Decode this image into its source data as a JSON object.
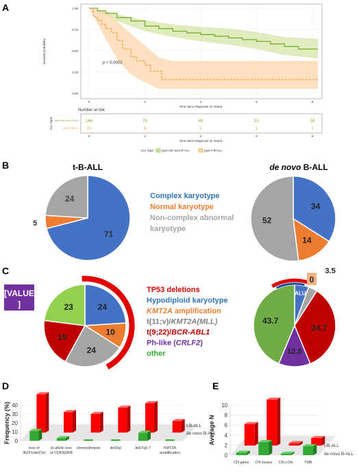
{
  "panels": {
    "A": "A",
    "B": "B",
    "C": "C",
    "D": "D",
    "E": "E"
  },
  "chart_data": [
    {
      "panel": "A",
      "type": "line",
      "xlabel": "Time since Diagnosis (in Years)",
      "ylabel": "Survival probability",
      "xticks": [
        "0",
        "2",
        "4",
        "6",
        "8"
      ],
      "yticks": [
        "0.00",
        "0.25",
        "0.50",
        "0.75",
        "1.00"
      ],
      "xlim": [
        0,
        8
      ],
      "ylim": [
        0,
        1
      ],
      "pvalue": "p < 0.0001",
      "series": [
        {
          "name": "type=de novo B-ALL",
          "color": "#7aab2a",
          "band": "#d6e6a8",
          "points": [
            [
              0,
              1
            ],
            [
              0.3,
              0.97
            ],
            [
              0.6,
              0.94
            ],
            [
              1,
              0.89
            ],
            [
              1.5,
              0.85
            ],
            [
              2,
              0.79
            ],
            [
              2.5,
              0.76
            ],
            [
              3,
              0.73
            ],
            [
              3.5,
              0.71
            ],
            [
              4,
              0.69
            ],
            [
              4.5,
              0.67
            ],
            [
              5,
              0.65
            ],
            [
              5.5,
              0.63
            ],
            [
              6,
              0.61
            ],
            [
              6.5,
              0.58
            ],
            [
              7,
              0.55
            ],
            [
              7.5,
              0.52
            ],
            [
              8.2,
              0.52
            ]
          ],
          "upper": [
            [
              0,
              1
            ],
            [
              1,
              0.93
            ],
            [
              2,
              0.86
            ],
            [
              3,
              0.81
            ],
            [
              4,
              0.78
            ],
            [
              5,
              0.76
            ],
            [
              6,
              0.72
            ],
            [
              7,
              0.66
            ],
            [
              8.2,
              0.64
            ]
          ],
          "lower": [
            [
              0,
              1
            ],
            [
              1,
              0.85
            ],
            [
              2,
              0.73
            ],
            [
              3,
              0.66
            ],
            [
              4,
              0.61
            ],
            [
              5,
              0.57
            ],
            [
              6,
              0.52
            ],
            [
              7,
              0.45
            ],
            [
              8.2,
              0.41
            ]
          ]
        },
        {
          "name": "type=t-B-ALL",
          "color": "#f0a040",
          "band": "#fbd6ab",
          "points": [
            [
              0,
              1
            ],
            [
              0.15,
              0.9
            ],
            [
              0.3,
              0.86
            ],
            [
              0.45,
              0.81
            ],
            [
              0.6,
              0.76
            ],
            [
              0.8,
              0.71
            ],
            [
              1,
              0.62
            ],
            [
              1.2,
              0.52
            ],
            [
              1.5,
              0.43
            ],
            [
              1.7,
              0.38
            ],
            [
              2,
              0.33
            ],
            [
              2.2,
              0.26
            ],
            [
              2.6,
              0.16
            ],
            [
              3.5,
              0.16
            ],
            [
              5,
              0.16
            ],
            [
              8.2,
              0.16
            ]
          ],
          "upper": [
            [
              0,
              1
            ],
            [
              0.5,
              0.97
            ],
            [
              1,
              0.85
            ],
            [
              1.5,
              0.7
            ],
            [
              2,
              0.56
            ],
            [
              2.5,
              0.42
            ],
            [
              3,
              0.38
            ],
            [
              8.2,
              0.38
            ]
          ],
          "lower": [
            [
              0,
              1
            ],
            [
              0.5,
              0.7
            ],
            [
              1,
              0.4
            ],
            [
              1.5,
              0.22
            ],
            [
              2,
              0.13
            ],
            [
              2.5,
              0.05
            ],
            [
              3,
              0.05
            ],
            [
              8.2,
              0.05
            ]
          ]
        }
      ],
      "risk_table": {
        "title": "Number at risk",
        "ylabel": "ALL Type",
        "xlabel": "Time since Diagnosis (in Years)",
        "rows": [
          {
            "label": "type=de novo B-ALL",
            "values": [
              "144",
              "79",
              "48",
              "31",
              "18"
            ]
          },
          {
            "label": "type=t-B-ALL",
            "values": [
              "21",
              "6",
              "3",
              "1",
              "1"
            ]
          }
        ]
      },
      "legend": {
        "title": "ALL Type",
        "items": [
          "type=de novo B-ALL",
          "type=t-B-ALL"
        ]
      }
    },
    {
      "panel": "B",
      "type": "pie",
      "title": "t-B-ALL",
      "slices": [
        {
          "label": "Complex karyotype",
          "value": 71,
          "color": "#4472c4"
        },
        {
          "label": "Normal karyotype",
          "value": 5,
          "color": "#ed7d31"
        },
        {
          "label": "Non-complex abnormal karyotype",
          "value": 24,
          "color": "#a5a5a5"
        }
      ]
    },
    {
      "panel": "B",
      "type": "pie",
      "title_italic": "de novo",
      "title_rest": " B-ALL",
      "slices": [
        {
          "label": "Complex karyotype",
          "value": 34,
          "color": "#4472c4"
        },
        {
          "label": "Normal karyotype",
          "value": 14,
          "color": "#ed7d31"
        },
        {
          "label": "Non-complex abnormal karyotype",
          "value": 52,
          "color": "#a5a5a5"
        }
      ]
    },
    {
      "panel": "C",
      "type": "pie",
      "slices": [
        {
          "label": "Hypodiploid karyotype",
          "value": 24,
          "color": "#4472c4"
        },
        {
          "label": "KMT2A amplification",
          "value": 10,
          "color": "#ed7d31"
        },
        {
          "label": "t(11;v)/KMT2A(MLL)",
          "value": 24,
          "color": "#a5a5a5"
        },
        {
          "label": "t(9;22)/BCR-ABL1",
          "value": 19,
          "color": "#c00000"
        },
        {
          "label": "other",
          "value": 23,
          "color": "#92d050"
        }
      ],
      "callout": "[VALUE]",
      "tp53_arc": true
    },
    {
      "panel": "C",
      "type": "pie",
      "slices": [
        {
          "label": "Hypodiploid karyotype",
          "value": "VALUE",
          "display": "[VALUE]",
          "color": "#4472c4"
        },
        {
          "label": "KMT2A amplification",
          "value": 0,
          "color": "#ed7d31"
        },
        {
          "label": "t(11;v)/KMT2A(MLL)",
          "value": 3.5,
          "color": "#a5a5a5"
        },
        {
          "label": "t(9;22)/BCR-ABL1",
          "value": 34.7,
          "color": "#c00000"
        },
        {
          "label": "Ph-like (CRLF2)",
          "value": 12.5,
          "color": "#7030a0"
        },
        {
          "label": "other",
          "value": 43.7,
          "color": "#70ad47"
        }
      ],
      "tp53_arc": true
    },
    {
      "panel": "D",
      "type": "bar",
      "ylabel": "Frequency (%)",
      "ylim": [
        0,
        40
      ],
      "yticks": [
        "0",
        "10",
        "20",
        "30",
        "40"
      ],
      "categories": [
        "loss of IKZF1/del(7p)",
        "bi-allelic loss of CDKN2A/B",
        "chromothripsis",
        "del(5q)",
        "del(7q)/-7",
        "KMT2A amplification"
      ],
      "series": [
        {
          "name": "t-B-ALL",
          "color": "#ff0000",
          "values": [
            43,
            23,
            21,
            28,
            33,
            13
          ]
        },
        {
          "name": "de novo B-ALL",
          "color": "#33aa33",
          "values": [
            11,
            3,
            0,
            0,
            9,
            0
          ]
        }
      ]
    },
    {
      "panel": "E",
      "type": "bar",
      "ylabel": "Average N",
      "ylim": [
        0,
        10
      ],
      "yticks": [
        "0",
        "2",
        "4",
        "6",
        "8",
        "10"
      ],
      "categories": [
        "CN gains",
        "CN losses",
        "CN-LOH",
        "TMB"
      ],
      "series": [
        {
          "name": "t-B-ALL",
          "color": "#ff0000",
          "values": [
            4.3,
            9.2,
            0.5,
            1.5
          ]
        },
        {
          "name": "de novo B-ALL",
          "color": "#33aa33",
          "values": [
            0.5,
            2.6,
            0.3,
            1.8
          ]
        }
      ]
    }
  ],
  "legend_B": [
    "Complex karyotype",
    "Normal karyotype",
    "Non-complex abnormal karyotype"
  ],
  "legend_C": [
    {
      "parts": [
        {
          "t": "TP53 deletions",
          "i": false
        }
      ],
      "color": "#e00000"
    },
    {
      "parts": [
        {
          "t": "Hypodiploid karyotype",
          "i": false
        }
      ],
      "color": "#2e75b6"
    },
    {
      "parts": [
        {
          "t": "KMT2A",
          "i": true
        },
        {
          "t": " amplification",
          "i": false
        }
      ],
      "color": "#ed7d31"
    },
    {
      "parts": [
        {
          "t": "t(11;v)/",
          "i": false
        },
        {
          "t": "KMT2A(MLL)",
          "i": true
        }
      ],
      "color": "#7f7f7f"
    },
    {
      "parts": [
        {
          "t": "t(9;22)/",
          "i": false
        },
        {
          "t": "BCR-ABL1",
          "i": true
        }
      ],
      "color": "#c00000"
    },
    {
      "parts": [
        {
          "t": "Ph-like (",
          "i": false
        },
        {
          "t": "CRLF2",
          "i": true
        },
        {
          "t": ")",
          "i": false
        }
      ],
      "color": "#7030a0"
    },
    {
      "parts": [
        {
          "t": "other",
          "i": false
        }
      ],
      "color": "#33aa33"
    }
  ]
}
